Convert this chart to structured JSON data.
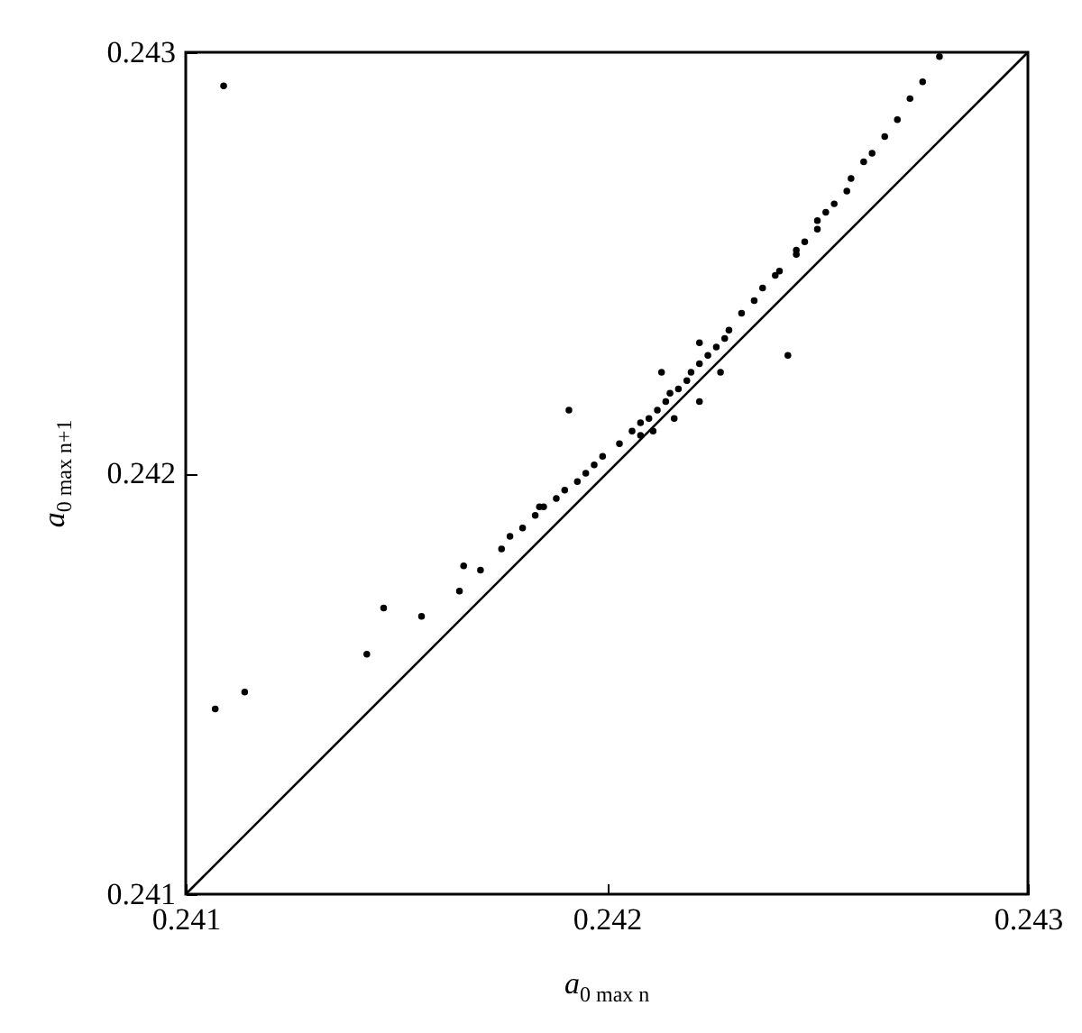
{
  "chart_data": {
    "type": "scatter",
    "xlabel": "a$_{0 max n}$",
    "ylabel": "a$_{0 max n+1}$",
    "xlim": [
      0.241,
      0.243
    ],
    "ylim": [
      0.241,
      0.243
    ],
    "xticks": [
      0.241,
      0.242,
      0.243
    ],
    "yticks": [
      0.241,
      0.242,
      0.243
    ],
    "grid": false,
    "series": [
      {
        "color": "#000000",
        "marker": "circle",
        "x": [
          0.24109,
          0.24279,
          0.24275,
          0.24272,
          0.24269,
          0.24266,
          0.24263,
          0.24261,
          0.24258,
          0.24257,
          0.24254,
          0.24252,
          0.2425,
          0.2425,
          0.24247,
          0.24245,
          0.24245,
          0.24241,
          0.2424,
          0.24237,
          0.24235,
          0.24232,
          0.24229,
          0.24228,
          0.24226,
          0.24224,
          0.24222,
          0.24243,
          0.24222,
          0.2422,
          0.24219,
          0.24217,
          0.24213,
          0.24227,
          0.24215,
          0.24214,
          0.24212,
          0.2421,
          0.24208,
          0.24222,
          0.24216,
          0.24211,
          0.24206,
          0.24208,
          0.24191,
          0.24203,
          0.24199,
          0.24197,
          0.24195,
          0.24193,
          0.2419,
          0.24188,
          0.24185,
          0.24184,
          0.24183,
          0.2418,
          0.24177,
          0.24175,
          0.24166,
          0.2417,
          0.24165,
          0.24147,
          0.24156,
          0.24143,
          0.24114,
          0.24107
        ],
        "values": [
          0.24292,
          0.24299,
          0.24293,
          0.24289,
          0.24284,
          0.2428,
          0.24276,
          0.24274,
          0.2427,
          0.24267,
          0.24264,
          0.24262,
          0.2426,
          0.24258,
          0.24255,
          0.24253,
          0.24252,
          0.24248,
          0.24247,
          0.24244,
          0.24241,
          0.24238,
          0.24234,
          0.24232,
          0.2423,
          0.24228,
          0.24231,
          0.24228,
          0.24226,
          0.24224,
          0.24222,
          0.2422,
          0.24224,
          0.24224,
          0.24219,
          0.24217,
          0.24215,
          0.24213,
          0.24212,
          0.24217,
          0.24213,
          0.2421,
          0.2421,
          0.24209,
          0.24215,
          0.24207,
          0.24204,
          0.24202,
          0.242,
          0.24198,
          0.24196,
          0.24194,
          0.24192,
          0.24192,
          0.2419,
          0.24187,
          0.24185,
          0.24182,
          0.24178,
          0.24177,
          0.24172,
          0.24168,
          0.24166,
          0.24157,
          0.24148,
          0.24144
        ]
      },
      {
        "type": "line",
        "color": "#000000",
        "x": [
          0.241,
          0.243
        ],
        "values": [
          0.241,
          0.243
        ]
      }
    ]
  }
}
